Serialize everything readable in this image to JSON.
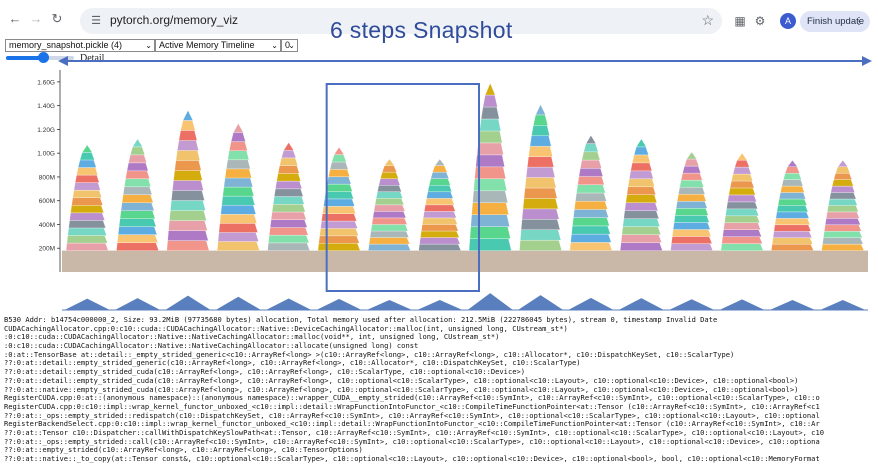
{
  "browser": {
    "back_icon": "arrow-left-icon",
    "forward_icon": "arrow-right-icon",
    "reload_icon": "reload-icon",
    "url": "pytorch.org/memory_viz",
    "finish_update_label": "Finish update",
    "avatar_letter": "A"
  },
  "overlay": {
    "title": "6 steps Snapshot",
    "detail_label": "Detail",
    "annotation_color": "#4a6fc0"
  },
  "controls": {
    "snapshot_select": "memory_snapshot.pickle (4)",
    "view_select": "Active Memory Timeline",
    "device_select": "0",
    "detail_slider_fraction": 0.55
  },
  "chart_data": {
    "type": "area",
    "title": "",
    "ylabel": "",
    "y_ticks": [
      "200M",
      "400M",
      "600M",
      "800M",
      "1.00G",
      "1.20G",
      "1.40G",
      "1.60G"
    ],
    "ylim_mib": [
      0,
      1700
    ],
    "x_steps": 6,
    "baseline_mib": 180,
    "peak_mib": [
      1070,
      1120,
      1360,
      1250,
      1090,
      1050,
      950,
      950,
      1590,
      1410,
      1150,
      1120,
      1010,
      1000,
      940,
      940
    ],
    "highlighted_step": 3
  },
  "log": {
    "lines": [
      "B530 Addr: b14754c000000_2, Size: 93.2MiB (97735680 bytes) allocation, Total memory used after allocation: 212.5MiB (222786045 bytes), stream 0, timestamp Invalid Date",
      "CUDACachingAllocator.cpp:0:c10::cuda::CUDACachingAllocator::Native::DeviceCachingAllocator::malloc(int, unsigned long, CUstream_st*)",
      ":0:c10::cuda::CUDACachingAllocator::Native::NativeCachingAllocator::malloc(void**, int, unsigned long, CUstream_st*)",
      ":0:c10::cuda::CUDACachingAllocator::Native::NativeCachingAllocator::allocate(unsigned long) const",
      ":0:at::TensorBase at::detail::_empty_strided_generic<c10::ArrayRef<long> >(c10::ArrayRef<long>, c10::ArrayRef<long>, c10::Allocator*, c10::DispatchKeySet, c10::ScalarType)",
      "??:0:at::detail::empty_strided_generic(c10::ArrayRef<long>, c10::ArrayRef<long>, c10::Allocator*, c10::DispatchKeySet, c10::ScalarType)",
      "??:0:at::detail::empty_strided_cuda(c10::ArrayRef<long>, c10::ArrayRef<long>, c10::ScalarType, c10::optional<c10::Device>)",
      "??:0:at::detail::empty_strided_cuda(c10::ArrayRef<long>, c10::ArrayRef<long>, c10::optional<c10::ScalarType>, c10::optional<c10::Layout>, c10::optional<c10::Device>, c10::optional<bool>)",
      "??:0:at::native::empty_strided_cuda(c10::ArrayRef<long>, c10::ArrayRef<long>, c10::optional<c10::ScalarType>, c10::optional<c10::Layout>, c10::optional<c10::Device>, c10::optional<bool>)",
      "RegisterCUDA.cpp:0:at::(anonymous namespace)::(anonymous namespace)::wrapper_CUDA__empty_strided(c10::ArrayRef<c10::SymInt>, c10::ArrayRef<c10::SymInt>, c10::optional<c10::ScalarType>, c10::o",
      "RegisterCUDA.cpp:0:c10::impl::wrap_kernel_functor_unboxed_<c10::impl::detail::WrapFunctionIntoFunctor_<c10::CompileTimeFunctionPointer<at::Tensor (c10::ArrayRef<c10::SymInt>, c10::ArrayRef<c1",
      "??:0:at::_ops::empty_strided::redispatch(c10::DispatchKeySet, c10::ArrayRef<c10::SymInt>, c10::ArrayRef<c10::SymInt>, c10::optional<c10::ScalarType>, c10::optional<c10::Layout>, c10::optional",
      "RegisterBackendSelect.cpp:0:c10::impl::wrap_kernel_functor_unboxed_<c10::impl::detail::WrapFunctionIntoFunctor_<c10::CompileTimeFunctionPointer<at::Tensor (c10::ArrayRef<c10::SymInt>, c10::Ar",
      "??:0:at::Tensor c10::Dispatcher::callWithDispatchKeySlowPath<at::Tensor, c10::ArrayRef<c10::SymInt>, c10::ArrayRef<c10::SymInt>, c10::optional<c10::ScalarType>, c10::optional<c10::Layout>, c10",
      "??:0:at::_ops::empty_strided::call(c10::ArrayRef<c10::SymInt>, c10::ArrayRef<c10::SymInt>, c10::optional<c10::ScalarType>, c10::optional<c10::Layout>, c10::optional<c10::Device>, c10::optiona",
      "??:0:at::empty_strided(c10::ArrayRef<long>, c10::ArrayRef<long>, c10::TensorOptions)",
      "??:0:at::native::_to_copy(at::Tensor const&, c10::optional<c10::ScalarType>, c10::optional<c10::Layout>, c10::optional<c10::Device>, c10::optional<bool>, bool, c10::optional<c10::MemoryFormat"
    ]
  }
}
